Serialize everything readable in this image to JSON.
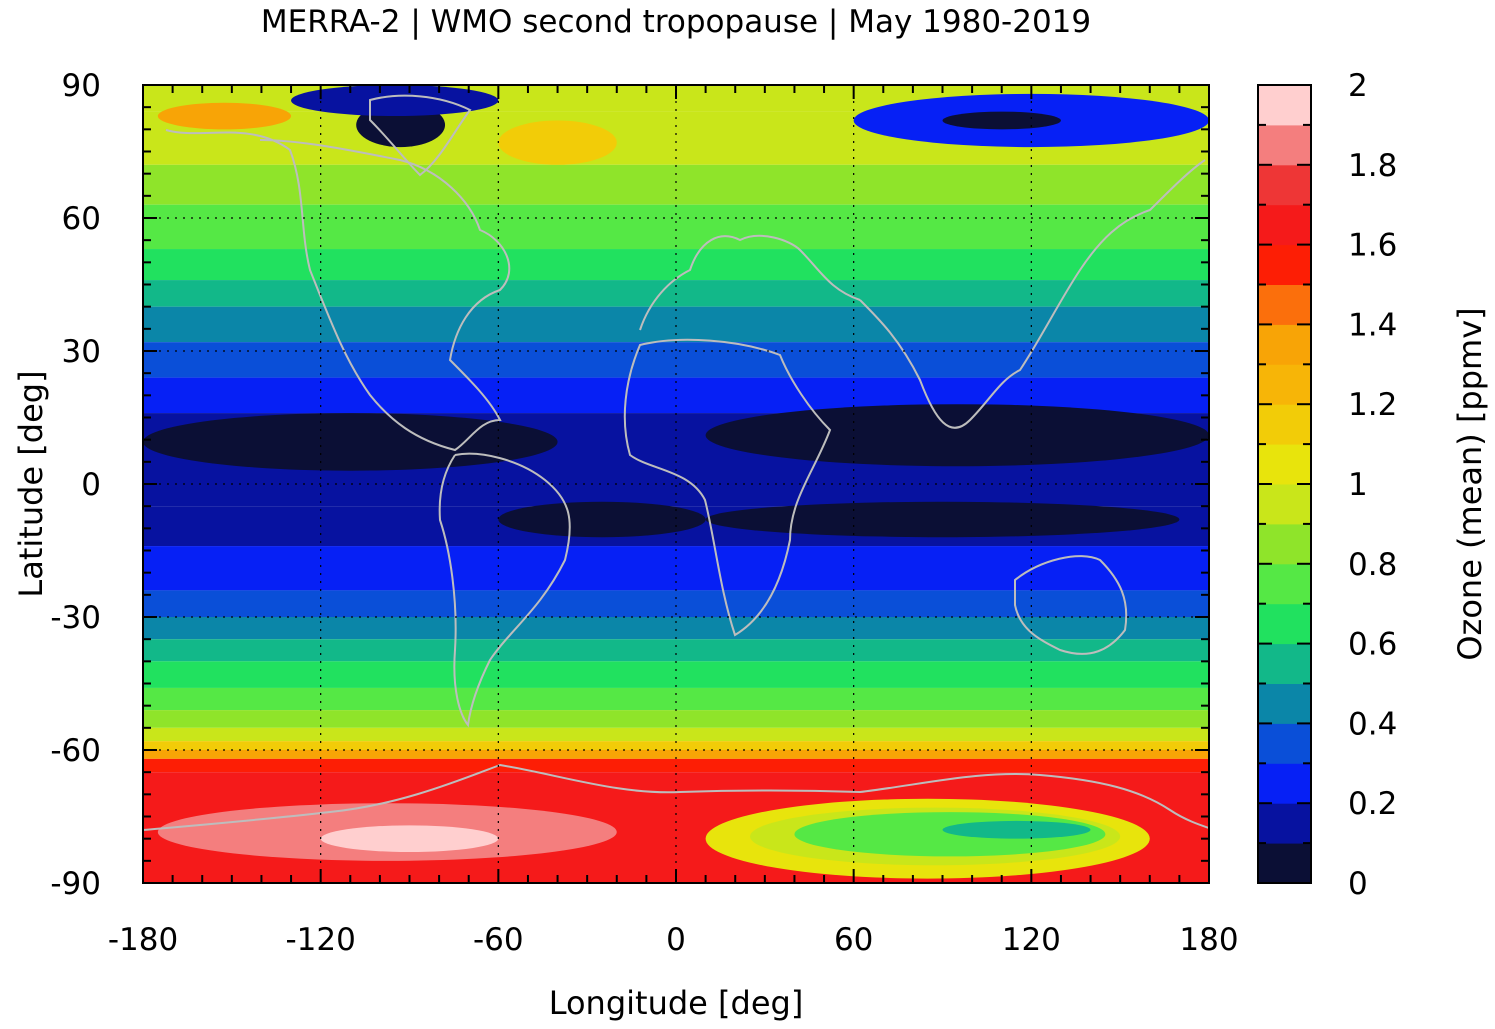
{
  "chart_data": {
    "type": "heatmap",
    "title": "MERRA-2 | WMO second tropopause | May 1980-2019",
    "xlabel": "Longitude [deg]",
    "ylabel": "Latitude [deg]",
    "colorbar_label": "Ozone (mean) [ppmv]",
    "xlim": [
      -180,
      180
    ],
    "ylim": [
      -90,
      90
    ],
    "x_ticks": [
      -180,
      -120,
      -60,
      0,
      60,
      120,
      180
    ],
    "x_tick_labels": [
      "-180",
      "-120",
      "-60",
      "0",
      "60",
      "120",
      "180"
    ],
    "y_ticks": [
      90,
      60,
      30,
      0,
      -30,
      -60,
      -90
    ],
    "y_tick_labels": [
      "90",
      "60",
      "30",
      "0",
      "-30",
      "-60",
      "-90"
    ],
    "colorbar_ticks": [
      2,
      1.8,
      1.6,
      1.4,
      1.2,
      1,
      0.8,
      0.6,
      0.4,
      0.2,
      0
    ],
    "colorbar_tick_labels": [
      "2",
      "1.8",
      "1.6",
      "1.4",
      "1.2",
      "1",
      "0.8",
      "0.6",
      "0.4",
      "0.2",
      "0"
    ],
    "grid": true,
    "color_levels": [
      {
        "min": 0.0,
        "max": 0.1,
        "color": "#0b0f35"
      },
      {
        "min": 0.1,
        "max": 0.2,
        "color": "#0712a0"
      },
      {
        "min": 0.2,
        "max": 0.3,
        "color": "#0620f5"
      },
      {
        "min": 0.3,
        "max": 0.4,
        "color": "#0a4fd8"
      },
      {
        "min": 0.4,
        "max": 0.5,
        "color": "#0b86a8"
      },
      {
        "min": 0.5,
        "max": 0.6,
        "color": "#12b889"
      },
      {
        "min": 0.6,
        "max": 0.7,
        "color": "#21e15f"
      },
      {
        "min": 0.7,
        "max": 0.8,
        "color": "#55e845"
      },
      {
        "min": 0.8,
        "max": 0.9,
        "color": "#8fe42a"
      },
      {
        "min": 0.9,
        "max": 1.0,
        "color": "#c9e61a"
      },
      {
        "min": 1.0,
        "max": 1.1,
        "color": "#e8e40c"
      },
      {
        "min": 1.1,
        "max": 1.2,
        "color": "#f2cc08"
      },
      {
        "min": 1.2,
        "max": 1.3,
        "color": "#f7b507"
      },
      {
        "min": 1.3,
        "max": 1.4,
        "color": "#f8a406"
      },
      {
        "min": 1.4,
        "max": 1.5,
        "color": "#fb6f0c"
      },
      {
        "min": 1.5,
        "max": 1.6,
        "color": "#fd1e05"
      },
      {
        "min": 1.6,
        "max": 1.7,
        "color": "#f51a1a"
      },
      {
        "min": 1.7,
        "max": 1.8,
        "color": "#ee3636"
      },
      {
        "min": 1.8,
        "max": 1.9,
        "color": "#f47e7e"
      },
      {
        "min": 1.9,
        "max": 2.0,
        "color": "#ffcfcf"
      }
    ],
    "zonal_profile": [
      {
        "lat_max": 90,
        "lat_min": 84,
        "value": 0.95
      },
      {
        "lat_max": 84,
        "lat_min": 72,
        "value": 0.95
      },
      {
        "lat_max": 72,
        "lat_min": 63,
        "value": 0.85
      },
      {
        "lat_max": 63,
        "lat_min": 53,
        "value": 0.75
      },
      {
        "lat_max": 53,
        "lat_min": 46,
        "value": 0.65
      },
      {
        "lat_max": 46,
        "lat_min": 40,
        "value": 0.55
      },
      {
        "lat_max": 40,
        "lat_min": 32,
        "value": 0.45
      },
      {
        "lat_max": 32,
        "lat_min": 24,
        "value": 0.35
      },
      {
        "lat_max": 24,
        "lat_min": 16,
        "value": 0.25
      },
      {
        "lat_max": 16,
        "lat_min": -5,
        "value": 0.15
      },
      {
        "lat_max": -5,
        "lat_min": -14,
        "value": 0.15
      },
      {
        "lat_max": -14,
        "lat_min": -24,
        "value": 0.25
      },
      {
        "lat_max": -24,
        "lat_min": -30,
        "value": 0.35
      },
      {
        "lat_max": -30,
        "lat_min": -35,
        "value": 0.45
      },
      {
        "lat_max": -35,
        "lat_min": -40,
        "value": 0.55
      },
      {
        "lat_max": -40,
        "lat_min": -46,
        "value": 0.65
      },
      {
        "lat_max": -46,
        "lat_min": -51,
        "value": 0.75
      },
      {
        "lat_max": -51,
        "lat_min": -55,
        "value": 0.85
      },
      {
        "lat_max": -55,
        "lat_min": -58,
        "value": 0.95
      },
      {
        "lat_max": -58,
        "lat_min": -60,
        "value": 1.15
      },
      {
        "lat_max": -60,
        "lat_min": -62,
        "value": 1.35
      },
      {
        "lat_max": -62,
        "lat_min": -65,
        "value": 1.55
      },
      {
        "lat_max": -65,
        "lat_min": -90,
        "value": 1.65
      }
    ],
    "regions": [
      {
        "name": "arctic-low-core",
        "lon": [
          -108,
          -78
        ],
        "lat": [
          86,
          76
        ],
        "value": 0.05
      },
      {
        "name": "arctic-low-band",
        "lon": [
          -130,
          -60
        ],
        "lat": [
          90,
          83
        ],
        "value": 0.15
      },
      {
        "name": "arctic-high-west",
        "lon": [
          -175,
          -130
        ],
        "lat": [
          86,
          80
        ],
        "value": 1.35
      },
      {
        "name": "arctic-high-greenland",
        "lon": [
          -60,
          -20
        ],
        "lat": [
          82,
          72
        ],
        "value": 1.15
      },
      {
        "name": "siberia-low",
        "lon": [
          60,
          180
        ],
        "lat": [
          88,
          76
        ],
        "value": 0.25
      },
      {
        "name": "siberia-low-core",
        "lon": [
          90,
          130
        ],
        "lat": [
          84,
          80
        ],
        "value": 0.05
      },
      {
        "name": "tropics-north-dark",
        "lon": [
          -180,
          -40
        ],
        "lat": [
          16,
          3
        ],
        "value": 0.05
      },
      {
        "name": "tropics-north-dark-2",
        "lon": [
          10,
          180
        ],
        "lat": [
          18,
          4
        ],
        "value": 0.05
      },
      {
        "name": "tropics-south-dark",
        "lon": [
          -60,
          10
        ],
        "lat": [
          -4,
          -12
        ],
        "value": 0.05
      },
      {
        "name": "tropics-south-dark-2",
        "lon": [
          10,
          170
        ],
        "lat": [
          -4,
          -12
        ],
        "value": 0.05
      },
      {
        "name": "antarctic-max-west",
        "lon": [
          -175,
          -20
        ],
        "lat": [
          -72,
          -85
        ],
        "value": 1.85
      },
      {
        "name": "antarctic-max-core",
        "lon": [
          -120,
          -60
        ],
        "lat": [
          -77,
          -83
        ],
        "value": 1.95
      },
      {
        "name": "antarctic-min-outer",
        "lon": [
          10,
          160
        ],
        "lat": [
          -71,
          -89
        ],
        "value": 1.05
      },
      {
        "name": "antarctic-min-mid",
        "lon": [
          25,
          150
        ],
        "lat": [
          -73,
          -86
        ],
        "value": 0.95
      },
      {
        "name": "antarctic-min-inner",
        "lon": [
          40,
          145
        ],
        "lat": [
          -74,
          -84
        ],
        "value": 0.75
      },
      {
        "name": "antarctic-min-core",
        "lon": [
          90,
          140
        ],
        "lat": [
          -76,
          -80
        ],
        "value": 0.55
      }
    ]
  }
}
